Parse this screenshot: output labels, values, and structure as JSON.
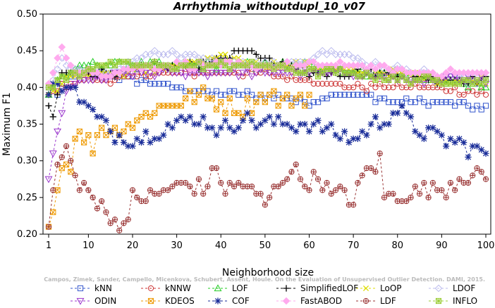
{
  "chart_data": {
    "type": "line",
    "title": "Arrhythmia_withoutdupl_10_v07",
    "xlabel": "Neighborhood size",
    "ylabel": "Maximum F1",
    "xlim": [
      1,
      100
    ],
    "ylim": [
      0.2,
      0.5
    ],
    "x_ticks": [
      "1",
      "10",
      "20",
      "30",
      "40",
      "50",
      "60",
      "70",
      "80",
      "90",
      "100"
    ],
    "y_ticks": [
      "0.20",
      "0.25",
      "0.30",
      "0.35",
      "0.40",
      "0.45",
      "0.50"
    ],
    "grid": false,
    "legend_position": "bottom",
    "watermark": "Campos, Zimek, Sander, Campello, Micenkova, Schubert, Assent, Houle. On the Evaluation of Unsupervised Outlier Detection. DAMI, 2015.",
    "series": [
      {
        "name": "kNN",
        "color": "#3355cc",
        "marker": "square",
        "dash": "3,3",
        "knots": [
          [
            1,
            0.4
          ],
          [
            3,
            0.39
          ],
          [
            5,
            0.41
          ],
          [
            8,
            0.42
          ],
          [
            12,
            0.42
          ],
          [
            20,
            0.41
          ],
          [
            30,
            0.4
          ],
          [
            40,
            0.39
          ],
          [
            50,
            0.39
          ],
          [
            60,
            0.38
          ],
          [
            65,
            0.39
          ],
          [
            70,
            0.39
          ],
          [
            80,
            0.38
          ],
          [
            90,
            0.38
          ],
          [
            100,
            0.37
          ]
        ]
      },
      {
        "name": "kNNW",
        "color": "#cc3333",
        "marker": "circle",
        "dash": "3,3",
        "knots": [
          [
            1,
            0.39
          ],
          [
            4,
            0.4
          ],
          [
            8,
            0.41
          ],
          [
            15,
            0.41
          ],
          [
            25,
            0.42
          ],
          [
            40,
            0.42
          ],
          [
            50,
            0.42
          ],
          [
            60,
            0.41
          ],
          [
            70,
            0.4
          ],
          [
            80,
            0.4
          ],
          [
            90,
            0.4
          ],
          [
            100,
            0.39
          ]
        ]
      },
      {
        "name": "LOF",
        "color": "#22cc22",
        "marker": "triangle-up",
        "dash": "3,3",
        "knots": [
          [
            1,
            0.39
          ],
          [
            3,
            0.41
          ],
          [
            6,
            0.42
          ],
          [
            10,
            0.43
          ],
          [
            20,
            0.43
          ],
          [
            30,
            0.43
          ],
          [
            40,
            0.43
          ],
          [
            50,
            0.43
          ],
          [
            60,
            0.43
          ],
          [
            70,
            0.42
          ],
          [
            80,
            0.42
          ],
          [
            90,
            0.41
          ],
          [
            100,
            0.4
          ]
        ]
      },
      {
        "name": "SimplifiedLOF",
        "color": "#000000",
        "marker": "plus",
        "dash": "3,3",
        "knots": [
          [
            1,
            0.37
          ],
          [
            2,
            0.36
          ],
          [
            4,
            0.42
          ],
          [
            8,
            0.42
          ],
          [
            15,
            0.42
          ],
          [
            25,
            0.43
          ],
          [
            35,
            0.43
          ],
          [
            45,
            0.45
          ],
          [
            50,
            0.44
          ],
          [
            55,
            0.43
          ],
          [
            60,
            0.42
          ],
          [
            70,
            0.42
          ],
          [
            80,
            0.42
          ],
          [
            90,
            0.41
          ],
          [
            100,
            0.41
          ]
        ]
      },
      {
        "name": "LoOP",
        "color": "#dddd00",
        "marker": "x",
        "dash": "3,3",
        "knots": [
          [
            1,
            0.39
          ],
          [
            5,
            0.41
          ],
          [
            10,
            0.42
          ],
          [
            20,
            0.42
          ],
          [
            30,
            0.43
          ],
          [
            40,
            0.44
          ],
          [
            50,
            0.43
          ],
          [
            60,
            0.43
          ],
          [
            70,
            0.42
          ],
          [
            80,
            0.42
          ],
          [
            90,
            0.41
          ],
          [
            100,
            0.41
          ]
        ]
      },
      {
        "name": "LDOF",
        "color": "#bbbbee",
        "marker": "diamond",
        "dash": "3,3",
        "knots": [
          [
            1,
            0.4
          ],
          [
            4,
            0.44
          ],
          [
            8,
            0.42
          ],
          [
            15,
            0.42
          ],
          [
            25,
            0.45
          ],
          [
            35,
            0.44
          ],
          [
            45,
            0.43
          ],
          [
            55,
            0.43
          ],
          [
            65,
            0.45
          ],
          [
            75,
            0.43
          ],
          [
            85,
            0.42
          ],
          [
            95,
            0.41
          ],
          [
            100,
            0.41
          ]
        ]
      },
      {
        "name": "ODIN",
        "color": "#9933cc",
        "marker": "triangle-down",
        "dash": "3,3",
        "knots": [
          [
            1,
            0.27
          ],
          [
            2,
            0.31
          ],
          [
            3,
            0.34
          ],
          [
            5,
            0.39
          ],
          [
            8,
            0.41
          ],
          [
            12,
            0.41
          ],
          [
            20,
            0.42
          ],
          [
            30,
            0.42
          ],
          [
            40,
            0.42
          ],
          [
            50,
            0.42
          ],
          [
            60,
            0.42
          ],
          [
            70,
            0.42
          ],
          [
            80,
            0.41
          ],
          [
            90,
            0.41
          ],
          [
            100,
            0.41
          ]
        ]
      },
      {
        "name": "KDEOS",
        "color": "#ee9900",
        "marker": "boxed-x",
        "dash": "3,3",
        "knots": [
          [
            1,
            0.22
          ],
          [
            2,
            0.23
          ],
          [
            3,
            0.26
          ],
          [
            4,
            0.3
          ],
          [
            6,
            0.29
          ],
          [
            7,
            0.34
          ],
          [
            9,
            0.33
          ],
          [
            11,
            0.32
          ],
          [
            13,
            0.35
          ],
          [
            15,
            0.34
          ],
          [
            20,
            0.35
          ],
          [
            25,
            0.37
          ],
          [
            30,
            0.38
          ],
          [
            35,
            0.39
          ],
          [
            40,
            0.38
          ],
          [
            45,
            0.37
          ],
          [
            50,
            0.39
          ],
          [
            55,
            0.38
          ],
          [
            60,
            0.39
          ]
        ]
      },
      {
        "name": "COF",
        "color": "#1a2d99",
        "marker": "star",
        "dash": "3,3",
        "knots": [
          [
            1,
            0.39
          ],
          [
            5,
            0.41
          ],
          [
            10,
            0.37
          ],
          [
            15,
            0.34
          ],
          [
            20,
            0.33
          ],
          [
            25,
            0.34
          ],
          [
            30,
            0.35
          ],
          [
            35,
            0.36
          ],
          [
            40,
            0.34
          ],
          [
            45,
            0.36
          ],
          [
            50,
            0.35
          ],
          [
            55,
            0.35
          ],
          [
            60,
            0.35
          ],
          [
            65,
            0.34
          ],
          [
            70,
            0.33
          ],
          [
            75,
            0.35
          ],
          [
            80,
            0.37
          ],
          [
            85,
            0.34
          ],
          [
            90,
            0.33
          ],
          [
            95,
            0.32
          ],
          [
            100,
            0.31
          ]
        ]
      },
      {
        "name": "FastABOD",
        "color": "#ffaaee",
        "marker": "diamond-filled",
        "dash": "3,3",
        "knots": [
          [
            1,
            0.4
          ],
          [
            3,
            0.44
          ],
          [
            4,
            0.46
          ],
          [
            6,
            0.43
          ],
          [
            8,
            0.42
          ],
          [
            15,
            0.42
          ],
          [
            25,
            0.43
          ],
          [
            40,
            0.43
          ],
          [
            55,
            0.43
          ],
          [
            70,
            0.43
          ],
          [
            85,
            0.42
          ],
          [
            100,
            0.42
          ]
        ]
      },
      {
        "name": "LDF",
        "color": "#993333",
        "marker": "circle-plus",
        "dash": "3,3",
        "knots": [
          [
            1,
            0.22
          ],
          [
            3,
            0.29
          ],
          [
            5,
            0.32
          ],
          [
            6,
            0.29
          ],
          [
            8,
            0.26
          ],
          [
            10,
            0.27
          ],
          [
            12,
            0.24
          ],
          [
            14,
            0.23
          ],
          [
            16,
            0.22
          ],
          [
            19,
            0.21
          ],
          [
            20,
            0.25
          ],
          [
            24,
            0.25
          ],
          [
            28,
            0.26
          ],
          [
            32,
            0.27
          ],
          [
            36,
            0.26
          ],
          [
            39,
            0.29
          ],
          [
            41,
            0.26
          ],
          [
            45,
            0.27
          ],
          [
            50,
            0.24
          ],
          [
            53,
            0.27
          ],
          [
            56,
            0.29
          ],
          [
            59,
            0.27
          ],
          [
            62,
            0.28
          ],
          [
            65,
            0.25
          ],
          [
            68,
            0.26
          ],
          [
            70,
            0.24
          ],
          [
            72,
            0.28
          ],
          [
            76,
            0.3
          ],
          [
            77,
            0.25
          ],
          [
            80,
            0.25
          ],
          [
            85,
            0.26
          ],
          [
            90,
            0.26
          ],
          [
            95,
            0.28
          ],
          [
            100,
            0.28
          ]
        ]
      },
      {
        "name": "INFLO",
        "color": "#99cc33",
        "marker": "boxed-star",
        "dash": "3,3",
        "knots": [
          [
            1,
            0.4
          ],
          [
            3,
            0.41
          ],
          [
            8,
            0.42
          ],
          [
            12,
            0.43
          ],
          [
            20,
            0.43
          ],
          [
            30,
            0.43
          ],
          [
            40,
            0.43
          ],
          [
            50,
            0.43
          ],
          [
            60,
            0.42
          ],
          [
            70,
            0.42
          ],
          [
            80,
            0.41
          ],
          [
            90,
            0.41
          ],
          [
            100,
            0.41
          ]
        ]
      }
    ]
  }
}
